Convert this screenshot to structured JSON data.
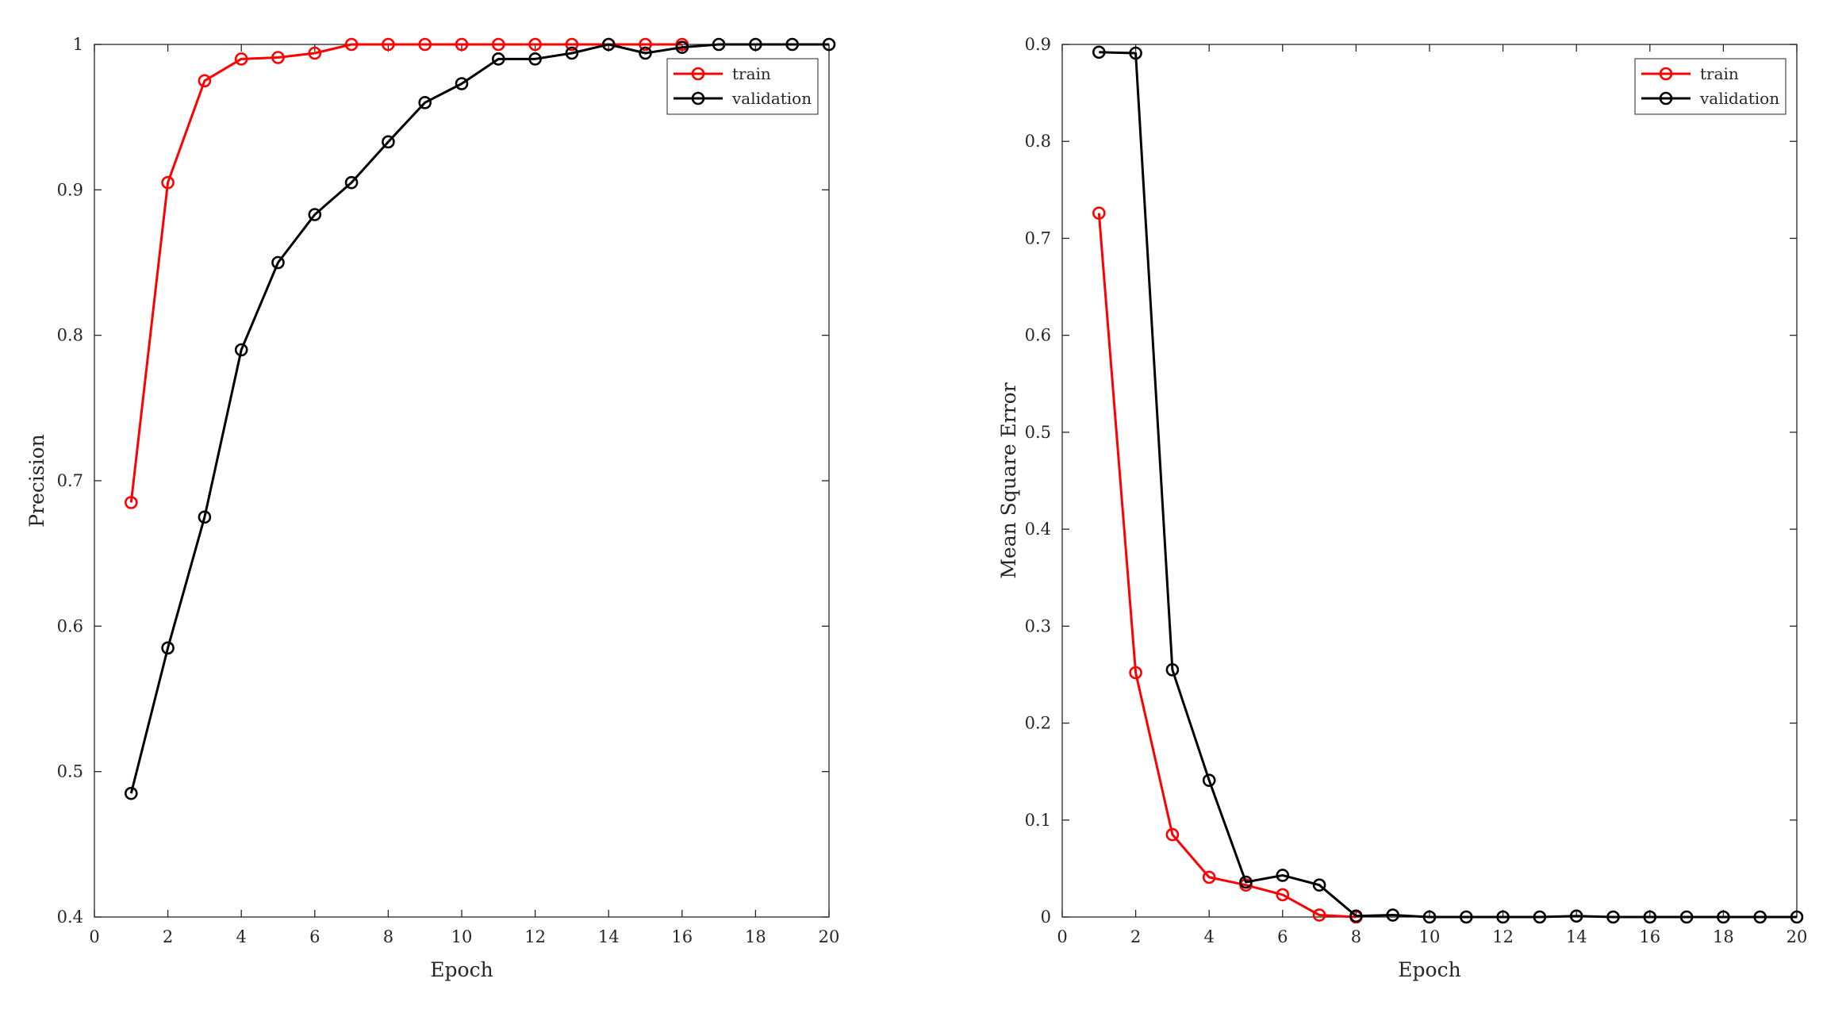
{
  "chart_data": [
    {
      "type": "line",
      "title": "",
      "xlabel": "Epoch",
      "ylabel": "Precision",
      "xlim": [
        0,
        20
      ],
      "ylim": [
        0.4,
        1.0
      ],
      "xticks": [
        0,
        2,
        4,
        6,
        8,
        10,
        12,
        14,
        16,
        18,
        20
      ],
      "xtick_labels": [
        "0",
        "2",
        "4",
        "6",
        "8",
        "10",
        "12",
        "14",
        "16",
        "18",
        "20"
      ],
      "yticks": [
        0.4,
        0.5,
        0.6,
        0.7,
        0.8,
        0.9,
        1.0
      ],
      "ytick_labels": [
        "0.4",
        "0.5",
        "0.6",
        "0.7",
        "0.8",
        "0.9",
        "1"
      ],
      "grid": false,
      "legend_position": "top-right",
      "series": [
        {
          "name": "train",
          "color": "#ff0000",
          "marker": "circle",
          "x": [
            1,
            2,
            3,
            4,
            5,
            6,
            7,
            8,
            9,
            10,
            11,
            12,
            13,
            14,
            15,
            16
          ],
          "y": [
            0.685,
            0.905,
            0.975,
            0.99,
            0.991,
            0.994,
            1.0,
            1.0,
            1.0,
            1.0,
            1.0,
            1.0,
            1.0,
            1.0,
            1.0,
            1.0
          ]
        },
        {
          "name": "validation",
          "color": "#000000",
          "marker": "circle",
          "x": [
            1,
            2,
            3,
            4,
            5,
            6,
            7,
            8,
            9,
            10,
            11,
            12,
            13,
            14,
            15,
            16,
            17,
            18,
            19,
            20
          ],
          "y": [
            0.485,
            0.585,
            0.675,
            0.79,
            0.85,
            0.883,
            0.905,
            0.933,
            0.96,
            0.973,
            0.99,
            0.99,
            0.994,
            1.0,
            0.994,
            0.998,
            1.0,
            1.0,
            1.0,
            1.0
          ]
        }
      ]
    },
    {
      "type": "line",
      "title": "",
      "xlabel": "Epoch",
      "ylabel": "Mean Square Error",
      "xlim": [
        0,
        20
      ],
      "ylim": [
        0,
        0.9
      ],
      "xticks": [
        0,
        2,
        4,
        6,
        8,
        10,
        12,
        14,
        16,
        18,
        20
      ],
      "xtick_labels": [
        "0",
        "2",
        "4",
        "6",
        "8",
        "10",
        "12",
        "14",
        "16",
        "18",
        "20"
      ],
      "yticks": [
        0,
        0.1,
        0.2,
        0.3,
        0.4,
        0.5,
        0.6,
        0.7,
        0.8,
        0.9
      ],
      "ytick_labels": [
        "0",
        "0.1",
        "0.2",
        "0.3",
        "0.4",
        "0.5",
        "0.6",
        "0.7",
        "0.8",
        "0.9"
      ],
      "grid": false,
      "legend_position": "top-right",
      "series": [
        {
          "name": "train",
          "color": "#ff0000",
          "marker": "circle",
          "x": [
            1,
            2,
            3,
            4,
            5,
            6,
            7,
            8
          ],
          "y": [
            0.726,
            0.252,
            0.085,
            0.041,
            0.033,
            0.023,
            0.002,
            0.0
          ]
        },
        {
          "name": "validation",
          "color": "#000000",
          "marker": "circle",
          "x": [
            1,
            2,
            3,
            4,
            5,
            6,
            7,
            8,
            9,
            10,
            11,
            12,
            13,
            14,
            15,
            16,
            17,
            18,
            19,
            20
          ],
          "y": [
            0.892,
            0.891,
            0.255,
            0.141,
            0.036,
            0.043,
            0.033,
            0.001,
            0.002,
            0.0,
            0.0,
            0.0,
            0.0,
            0.001,
            0.0,
            0.0,
            0.0,
            0.0,
            0.0,
            0.0
          ]
        }
      ]
    }
  ]
}
